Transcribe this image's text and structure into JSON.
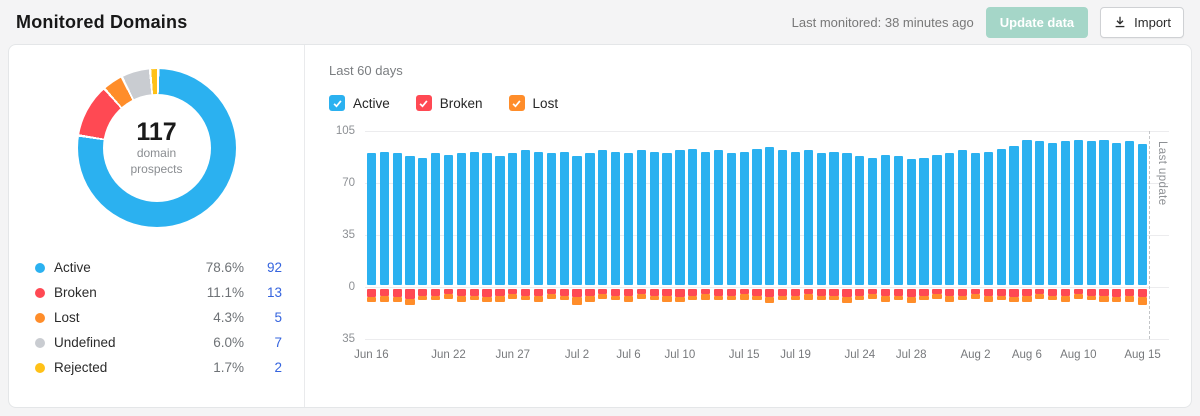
{
  "header": {
    "title": "Monitored Domains",
    "last_monitored": "Last monitored: 38 minutes ago",
    "update_button": "Update data",
    "import_button": "Import",
    "import_icon": "download-icon",
    "update_button_color": "#a5d6c8"
  },
  "donut": {
    "center_value": "117",
    "center_label_line1": "domain",
    "center_label_line2": "prospects",
    "segments": [
      {
        "label": "Active",
        "percent": "78.6%",
        "count": "92",
        "color": "#2bb1f0"
      },
      {
        "label": "Broken",
        "percent": "11.1%",
        "count": "13",
        "color": "#ff4953"
      },
      {
        "label": "Lost",
        "percent": "4.3%",
        "count": "5",
        "color": "#ff8d2a"
      },
      {
        "label": "Undefined",
        "percent": "6.0%",
        "count": "7",
        "color": "#c9ccd1"
      },
      {
        "label": "Rejected",
        "percent": "1.7%",
        "count": "2",
        "color": "#ffc117"
      }
    ],
    "count_link_color": "#3564de"
  },
  "chart": {
    "title": "Last 60 days",
    "legend": [
      {
        "label": "Active",
        "color": "#2bb1f0",
        "checked": true
      },
      {
        "label": "Broken",
        "color": "#ff4953",
        "checked": true
      },
      {
        "label": "Lost",
        "color": "#ff8d2a",
        "checked": true
      }
    ],
    "last_update_label": "Last update"
  },
  "chart_data": {
    "type": "bar",
    "stacked": true,
    "x_unit": "day",
    "x_range": [
      "Jun 16",
      "Aug 15"
    ],
    "ylim": [
      -35,
      105
    ],
    "grid": true,
    "y_ticks": [
      {
        "label": "105",
        "value": 105
      },
      {
        "label": "70",
        "value": 70
      },
      {
        "label": "35",
        "value": 35
      },
      {
        "label": "0",
        "value": 0
      },
      {
        "label": "35",
        "value": -35
      }
    ],
    "x_tick_labels": [
      {
        "label": "Jun 16",
        "index": 0
      },
      {
        "label": "Jun 22",
        "index": 6
      },
      {
        "label": "Jun 27",
        "index": 11
      },
      {
        "label": "Jul 2",
        "index": 16
      },
      {
        "label": "Jul 6",
        "index": 20
      },
      {
        "label": "Jul 10",
        "index": 24
      },
      {
        "label": "Jul 15",
        "index": 29
      },
      {
        "label": "Jul 19",
        "index": 33
      },
      {
        "label": "Jul 24",
        "index": 38
      },
      {
        "label": "Jul 28",
        "index": 42
      },
      {
        "label": "Aug 2",
        "index": 47
      },
      {
        "label": "Aug 6",
        "index": 51
      },
      {
        "label": "Aug 10",
        "index": 55
      },
      {
        "label": "Aug 15",
        "index": 60
      }
    ],
    "series": [
      {
        "name": "Active",
        "color": "#2bb1f0",
        "direction": "positive",
        "values": [
          90,
          91,
          90,
          88,
          87,
          90,
          89,
          90,
          91,
          90,
          88,
          90,
          92,
          91,
          90,
          91,
          88,
          90,
          92,
          91,
          90,
          92,
          91,
          90,
          92,
          93,
          91,
          92,
          90,
          91,
          93,
          94,
          92,
          91,
          92,
          90,
          91,
          90,
          88,
          87,
          89,
          88,
          86,
          87,
          89,
          90,
          92,
          90,
          91,
          93,
          95,
          99,
          98,
          97,
          98,
          99,
          98,
          99,
          97,
          98,
          96
        ]
      },
      {
        "name": "Broken",
        "color": "#ff4953",
        "direction": "negative",
        "values": [
          6,
          5,
          6,
          7,
          5,
          5,
          4,
          5,
          5,
          6,
          5,
          4,
          5,
          5,
          4,
          5,
          6,
          5,
          4,
          5,
          5,
          4,
          5,
          5,
          6,
          5,
          4,
          5,
          5,
          4,
          5,
          6,
          5,
          5,
          4,
          5,
          5,
          6,
          5,
          4,
          5,
          5,
          6,
          5,
          4,
          5,
          5,
          4,
          5,
          5,
          6,
          5,
          4,
          5,
          5,
          4,
          5,
          5,
          6,
          5,
          6
        ]
      },
      {
        "name": "Lost",
        "color": "#ff8d2a",
        "direction": "negative",
        "values": [
          3,
          4,
          3,
          4,
          3,
          3,
          3,
          4,
          3,
          3,
          4,
          3,
          3,
          4,
          3,
          3,
          5,
          4,
          3,
          3,
          4,
          3,
          3,
          4,
          3,
          3,
          4,
          3,
          3,
          4,
          3,
          4,
          3,
          3,
          4,
          3,
          3,
          4,
          3,
          3,
          4,
          3,
          4,
          3,
          3,
          4,
          3,
          3,
          4,
          3,
          3,
          4,
          3,
          3,
          4,
          3,
          3,
          4,
          3,
          4,
          5
        ]
      }
    ],
    "annotation": {
      "label": "Last update",
      "position": "end",
      "style": "dashed-vertical-line"
    }
  }
}
